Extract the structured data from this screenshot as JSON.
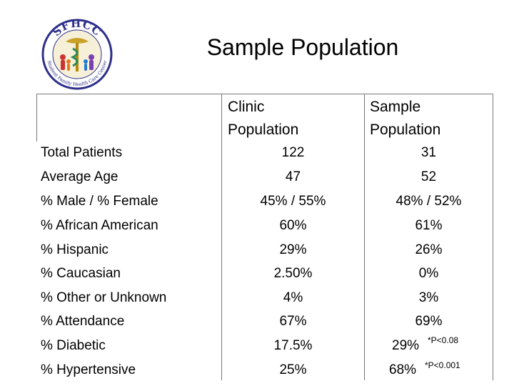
{
  "logo": {
    "text": "SFHCC",
    "tagline": "Student Family Health Care Center"
  },
  "title": "Sample Population",
  "table": {
    "headers": [
      {
        "line1": "Clinic",
        "line2": "Population"
      },
      {
        "line1": "Sample",
        "line2": "Population"
      }
    ],
    "rows": [
      {
        "label": "Total Patients",
        "clinic": "122",
        "sample": "31"
      },
      {
        "label": "Average Age",
        "clinic": "47",
        "sample": "52"
      },
      {
        "label": "% Male / % Female",
        "clinic": "45% / 55%",
        "sample": "48% / 52%"
      },
      {
        "label": "% African American",
        "clinic": "60%",
        "sample": "61%"
      },
      {
        "label": "% Hispanic",
        "clinic": "29%",
        "sample": "26%"
      },
      {
        "label": "% Caucasian",
        "clinic": "2.50%",
        "sample": "0%"
      },
      {
        "label": "% Other or Unknown",
        "clinic": "4%",
        "sample": "3%"
      },
      {
        "label": "% Attendance",
        "clinic": "67%",
        "sample": "69%"
      },
      {
        "label": "% Diabetic",
        "clinic": "17.5%",
        "sample": "29%",
        "note": "*P<0.08"
      },
      {
        "label": "% Hypertensive",
        "clinic": "25%",
        "sample": "68%",
        "note": "*P<0.001"
      }
    ]
  }
}
